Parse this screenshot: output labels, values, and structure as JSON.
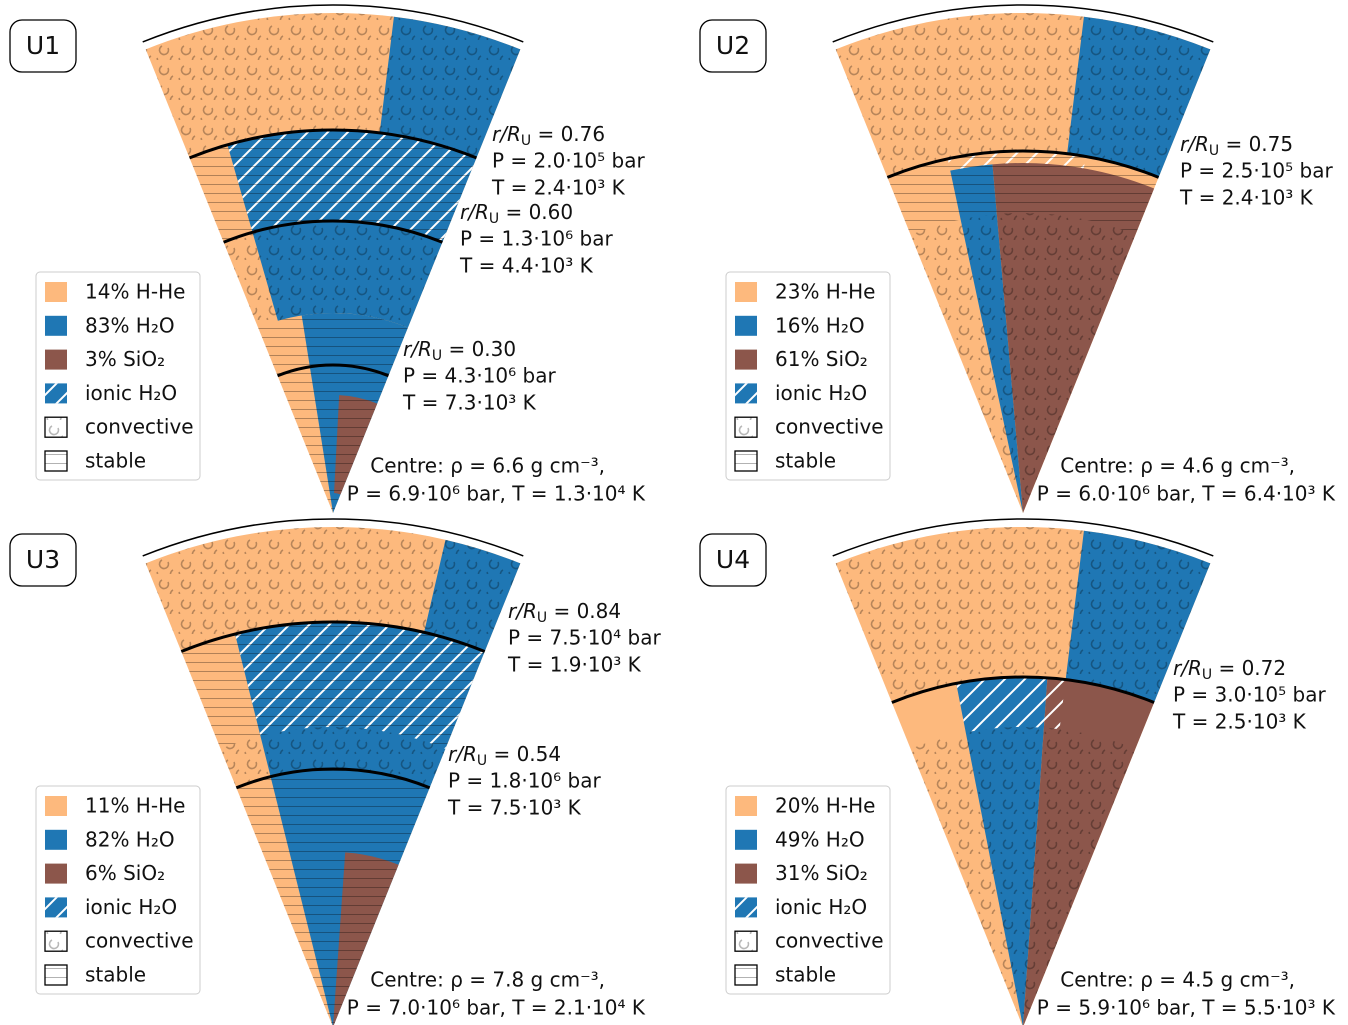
{
  "colors": [
    "#fdb97d",
    "#1f77b4",
    "#8c564b"
  ],
  "panels": [
    {
      "label": "U1",
      "legend": [
        "14% H-He",
        "83% H₂O",
        "3% SiO₂",
        "ionic H₂O",
        "convective",
        "stable"
      ],
      "layers": [
        {
          "radius": [
            "r/R",
            "U",
            " = 0.76"
          ],
          "pressure": "P = 2.0·10⁵ bar",
          "temperature": "T = 2.4·10³ K"
        },
        {
          "radius": [
            "r/R",
            "U",
            " = 0.60"
          ],
          "pressure": "P = 1.3·10⁶ bar",
          "temperature": "T = 4.4·10³ K"
        },
        {
          "radius": [
            "r/R",
            "U",
            " = 0.30"
          ],
          "pressure": "P = 4.3·10⁶ bar",
          "temperature": "T = 7.3·10³ K"
        }
      ],
      "centre": [
        "Centre: ρ = 6.6 g cm⁻³,",
        "P = 6.9·10⁶ bar, T = 1.3·10⁴ K"
      ]
    },
    {
      "label": "U2",
      "legend": [
        "23% H-He",
        "16% H₂O",
        "61% SiO₂",
        "ionic H₂O",
        "convective",
        "stable"
      ],
      "layers": [
        {
          "radius": [
            "r/R",
            "U",
            " = 0.75"
          ],
          "pressure": "P = 2.5·10⁵ bar",
          "temperature": "T = 2.4·10³ K"
        }
      ],
      "centre": [
        "Centre: ρ = 4.6 g cm⁻³,",
        "P = 6.0·10⁶ bar, T = 6.4·10³ K"
      ]
    },
    {
      "label": "U3",
      "legend": [
        "11% H-He",
        "82% H₂O",
        "6% SiO₂",
        "ionic H₂O",
        "convective",
        "stable"
      ],
      "layers": [
        {
          "radius": [
            "r/R",
            "U",
            " = 0.84"
          ],
          "pressure": "P = 7.5·10⁴ bar",
          "temperature": "T = 1.9·10³ K"
        },
        {
          "radius": [
            "r/R",
            "U",
            " = 0.54"
          ],
          "pressure": "P = 1.8·10⁶ bar",
          "temperature": "T = 7.5·10³ K"
        }
      ],
      "centre": [
        "Centre: ρ = 7.8 g cm⁻³,",
        "P = 7.0·10⁶ bar, T = 2.1·10⁴ K"
      ]
    },
    {
      "label": "U4",
      "legend": [
        "20% H-He",
        "49% H₂O",
        "31% SiO₂",
        "ionic H₂O",
        "convective",
        "stable"
      ],
      "layers": [
        {
          "radius": [
            "r/R",
            "U",
            " = 0.72"
          ],
          "pressure": "P = 3.0·10⁵ bar",
          "temperature": "T = 2.5·10³ K"
        }
      ],
      "centre": [
        "Centre: ρ = 4.5 g cm⁻³,",
        "P = 5.9·10⁶ bar, T = 5.5·10³ K"
      ]
    }
  ]
}
